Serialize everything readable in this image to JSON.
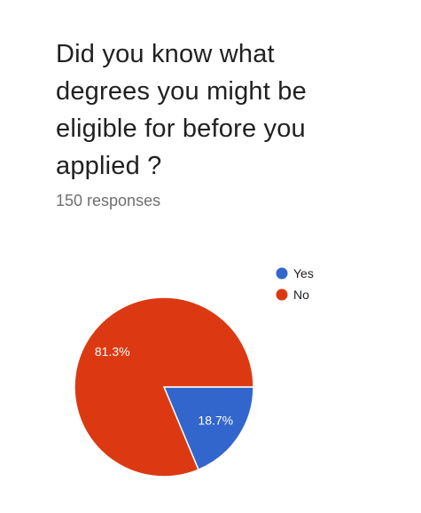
{
  "chart_data": {
    "type": "pie",
    "title": "Did you know what degrees you might be eligible for before you applied ?",
    "responses": "150 responses",
    "legend_position": "top-right",
    "slices": [
      {
        "label": "Yes",
        "value": 18.7,
        "value_label": "18.7%",
        "color": "#3366cc"
      },
      {
        "label": "No",
        "value": 81.3,
        "value_label": "81.3%",
        "color": "#dc3912"
      }
    ]
  }
}
